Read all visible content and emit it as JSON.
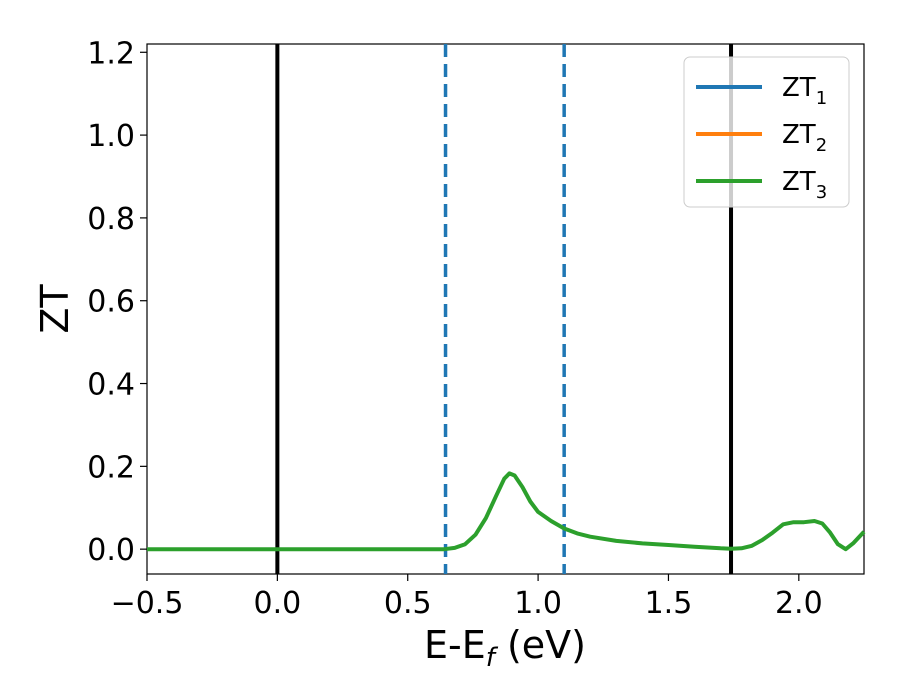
{
  "chart_data": {
    "type": "line",
    "title": "",
    "xlabel": {
      "main": "E-E",
      "sub": "f",
      "tail": " (eV)"
    },
    "ylabel": "ZT",
    "xlim": [
      -0.5,
      2.25
    ],
    "ylim": [
      -0.06,
      1.22
    ],
    "xticks": [
      -0.5,
      0.0,
      0.5,
      1.0,
      1.5,
      2.0
    ],
    "xtick_labels": [
      "−0.5",
      "0.0",
      "0.5",
      "1.0",
      "1.5",
      "2.0"
    ],
    "yticks": [
      0.0,
      0.2,
      0.4,
      0.6,
      0.8,
      1.0,
      1.2
    ],
    "ytick_labels": [
      "0.0",
      "0.2",
      "0.4",
      "0.6",
      "0.8",
      "1.0",
      "1.2"
    ],
    "grid": false,
    "legend_position": "top-right",
    "vlines": [
      {
        "x": 0.0,
        "style": "solid",
        "color": "#000000"
      },
      {
        "x": 1.74,
        "style": "solid",
        "color": "#000000"
      },
      {
        "x": 0.645,
        "style": "dashed",
        "color": "#1f77b4"
      },
      {
        "x": 1.1,
        "style": "dashed",
        "color": "#1f77b4"
      }
    ],
    "series": [
      {
        "name": "ZT",
        "sub": "1",
        "color": "#1f77b4",
        "x": [],
        "y": []
      },
      {
        "name": "ZT",
        "sub": "2",
        "color": "#ff7f0e",
        "x": [],
        "y": []
      },
      {
        "name": "ZT",
        "sub": "3",
        "color": "#2ca02c",
        "x": [
          -0.5,
          0.0,
          0.5,
          0.64,
          0.68,
          0.72,
          0.76,
          0.8,
          0.84,
          0.87,
          0.89,
          0.91,
          0.94,
          0.97,
          1.0,
          1.05,
          1.1,
          1.15,
          1.2,
          1.3,
          1.4,
          1.5,
          1.6,
          1.7,
          1.74,
          1.78,
          1.82,
          1.86,
          1.9,
          1.94,
          1.98,
          2.02,
          2.06,
          2.09,
          2.12,
          2.15,
          2.18,
          2.21,
          2.25
        ],
        "y": [
          0.0,
          0.0,
          0.0,
          0.0,
          0.003,
          0.012,
          0.035,
          0.075,
          0.13,
          0.17,
          0.183,
          0.178,
          0.15,
          0.115,
          0.09,
          0.068,
          0.05,
          0.038,
          0.03,
          0.02,
          0.014,
          0.01,
          0.006,
          0.002,
          0.001,
          0.002,
          0.008,
          0.022,
          0.04,
          0.06,
          0.065,
          0.065,
          0.068,
          0.062,
          0.04,
          0.012,
          0.0,
          0.015,
          0.042
        ]
      }
    ]
  }
}
